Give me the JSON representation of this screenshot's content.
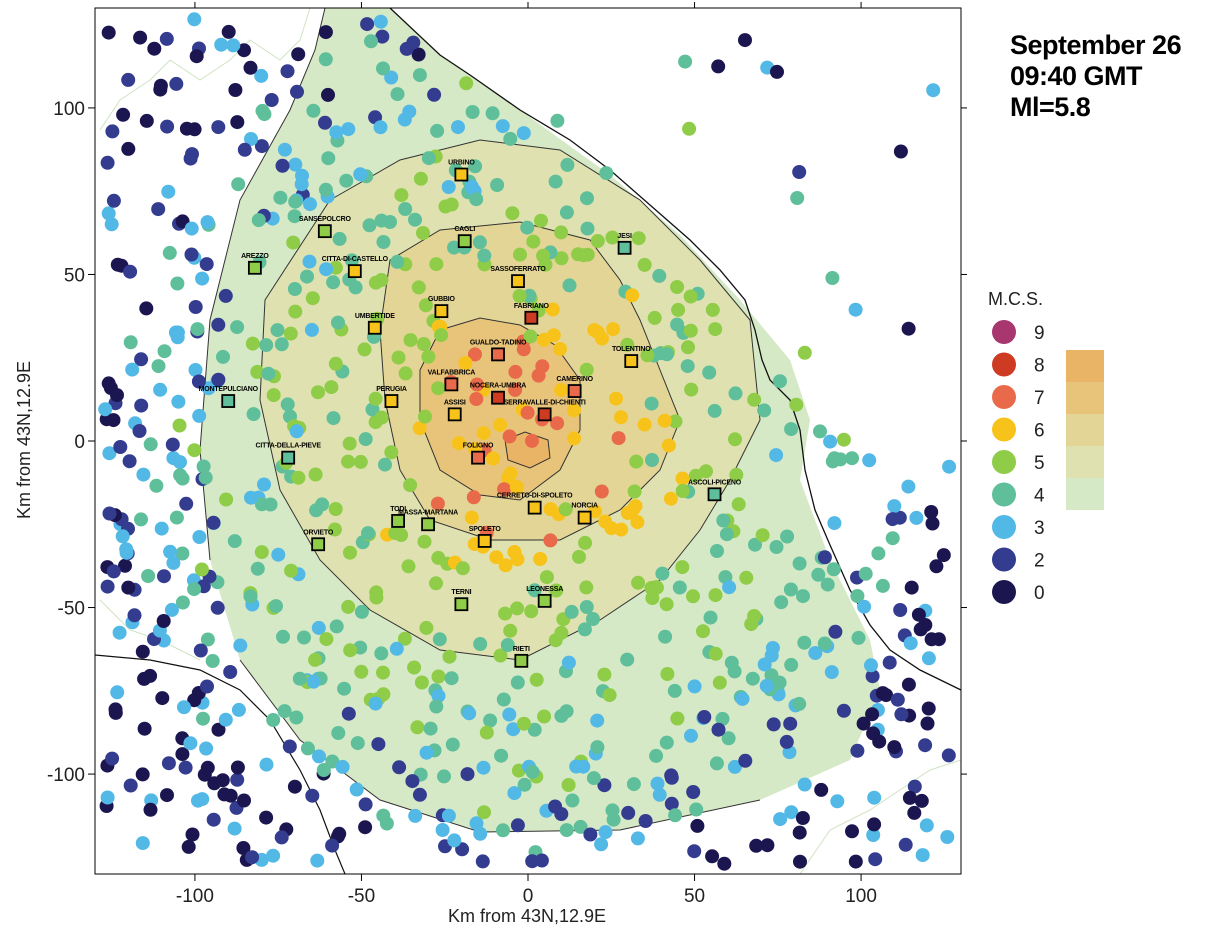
{
  "header": {
    "date": "September 26",
    "time": "09:40 GMT",
    "magnitude": "Ml=5.8"
  },
  "axes": {
    "x_label": "Km from 43N,12.9E",
    "y_label": "Km from 43N,12.9E",
    "x_ticks": [
      "-100",
      "-50",
      "0",
      "50",
      "100"
    ],
    "y_ticks": [
      "100",
      "50",
      "0",
      "-50",
      "-100"
    ],
    "x_tick_values": [
      -100,
      -50,
      0,
      50,
      100
    ],
    "y_tick_values": [
      100,
      50,
      0,
      -50,
      -100
    ],
    "xlim": [
      -130,
      130
    ],
    "ylim": [
      -130,
      130
    ]
  },
  "legend": {
    "title": "M.C.S.",
    "items": [
      {
        "label": "9",
        "color": "#a8366f"
      },
      {
        "label": "8",
        "color": "#cc3b22"
      },
      {
        "label": "7",
        "color": "#e86a4a"
      },
      {
        "label": "6",
        "color": "#f7c31a"
      },
      {
        "label": "5",
        "color": "#8fcc47"
      },
      {
        "label": "4",
        "color": "#5fbf9a"
      },
      {
        "label": "3",
        "color": "#52b8e6"
      },
      {
        "label": "2",
        "color": "#343c8f"
      },
      {
        "label": "0",
        "color": "#1c1650"
      }
    ],
    "shade_colors": [
      "#e9b466",
      "#e7c47a",
      "#e3d596",
      "#dfe2b0",
      "#d6e9c6"
    ]
  },
  "towns": [
    {
      "name": "URBINO",
      "x": -20,
      "y": 80,
      "intensity": "6"
    },
    {
      "name": "SANSEPOLCRO",
      "x": -61,
      "y": 63,
      "intensity": "5"
    },
    {
      "name": "CAGLI",
      "x": -19,
      "y": 60,
      "intensity": "5"
    },
    {
      "name": "JESI",
      "x": 29,
      "y": 58,
      "intensity": "4"
    },
    {
      "name": "AREZZO",
      "x": -82,
      "y": 52,
      "intensity": "5"
    },
    {
      "name": "CITTA-DI-CASTELLO",
      "x": -52,
      "y": 51,
      "intensity": "6"
    },
    {
      "name": "SASSOFERRATO",
      "x": -3,
      "y": 48,
      "intensity": "6"
    },
    {
      "name": "GUBBIO",
      "x": -26,
      "y": 39,
      "intensity": "6"
    },
    {
      "name": "FABRIANO",
      "x": 1,
      "y": 37,
      "intensity": "8"
    },
    {
      "name": "UMBERTIDE",
      "x": -46,
      "y": 34,
      "intensity": "6"
    },
    {
      "name": "GUALDO-TADINO",
      "x": -9,
      "y": 26,
      "intensity": "7"
    },
    {
      "name": "TOLENTINO",
      "x": 31,
      "y": 24,
      "intensity": "6"
    },
    {
      "name": "VALFABBRICA",
      "x": -23,
      "y": 17,
      "intensity": "7"
    },
    {
      "name": "NOCERA-UMBRA",
      "x": -9,
      "y": 13,
      "intensity": "8"
    },
    {
      "name": "CAMERINO",
      "x": 14,
      "y": 15,
      "intensity": "7"
    },
    {
      "name": "MONTEPULCIANO",
      "x": -90,
      "y": 12,
      "intensity": "4"
    },
    {
      "name": "PERUGIA",
      "x": -41,
      "y": 12,
      "intensity": "6"
    },
    {
      "name": "SERRAVALLE-DI-CHIENTI",
      "x": 5,
      "y": 8,
      "intensity": "8"
    },
    {
      "name": "ASSISI",
      "x": -22,
      "y": 8,
      "intensity": "6"
    },
    {
      "name": "FOLIGNO",
      "x": -15,
      "y": -5,
      "intensity": "7"
    },
    {
      "name": "CITTA-DELLA-PIEVE",
      "x": -72,
      "y": -5,
      "intensity": "4"
    },
    {
      "name": "ASCOLI-PICENO",
      "x": 56,
      "y": -16,
      "intensity": "4"
    },
    {
      "name": "CERRETO-DI-SPOLETO",
      "x": 2,
      "y": -20,
      "intensity": "6"
    },
    {
      "name": "NORCIA",
      "x": 17,
      "y": -23,
      "intensity": "6"
    },
    {
      "name": "TODI",
      "x": -39,
      "y": -24,
      "intensity": "5"
    },
    {
      "name": "MASSA-MARTANA",
      "x": -30,
      "y": -25,
      "intensity": "5"
    },
    {
      "name": "SPOLETO",
      "x": -13,
      "y": -30,
      "intensity": "6"
    },
    {
      "name": "ORVIETO",
      "x": -63,
      "y": -31,
      "intensity": "5"
    },
    {
      "name": "TERNI",
      "x": -20,
      "y": -49,
      "intensity": "5"
    },
    {
      "name": "LEONESSA",
      "x": 5,
      "y": -48,
      "intensity": "5"
    },
    {
      "name": "RIETI",
      "x": -2,
      "y": -66,
      "intensity": "5"
    }
  ]
}
